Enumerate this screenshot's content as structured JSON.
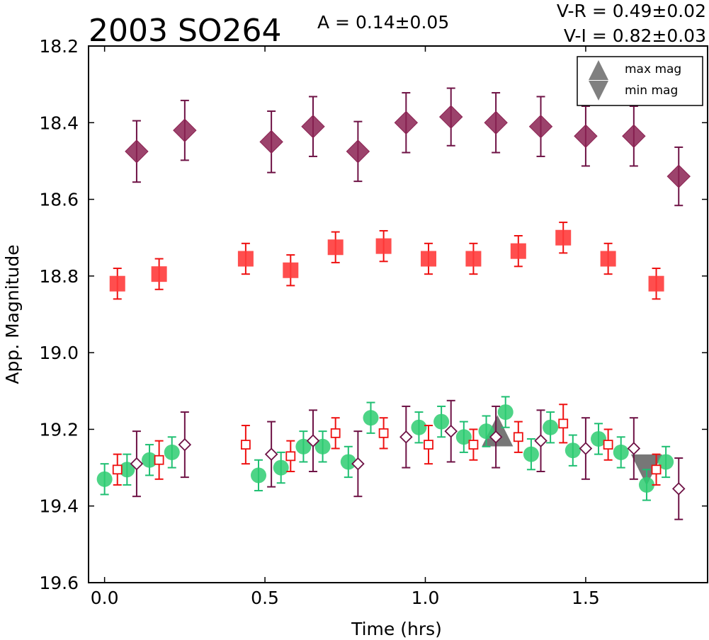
{
  "chart_data": {
    "type": "scatter",
    "title": "2003 SO264",
    "amplitude_text": "A  = 0.14±0.05",
    "color_index_lines": [
      "V-R = 0.49±0.02",
      "V-I  = 0.82±0.03"
    ],
    "xlabel": "Time (hrs)",
    "ylabel": "App. Magnitude",
    "xlim": [
      -0.05,
      1.88
    ],
    "ylim": [
      19.6,
      18.2
    ],
    "y_inverted": true,
    "grid": false,
    "xticks": [
      0.0,
      0.5,
      1.0,
      1.5
    ],
    "xtick_labels": [
      "0.0",
      "0.5",
      "1.0",
      "1.5"
    ],
    "yticks": [
      18.2,
      18.4,
      18.6,
      18.8,
      19.0,
      19.2,
      19.4,
      19.6
    ],
    "ytick_labels": [
      "18.2",
      "18.4",
      "18.6",
      "18.8",
      "19.0",
      "19.2",
      "19.4",
      "19.6"
    ],
    "legend": {
      "placement": "top-right",
      "entries": [
        {
          "label": "max mag",
          "marker": "triangle-up",
          "color": "#555555"
        },
        {
          "label": "min mag",
          "marker": "triangle-down",
          "color": "#555555"
        }
      ]
    },
    "series": [
      {
        "marker": "diamond-filled",
        "color": "#8b2252",
        "errcolor": "#6e1245",
        "points": [
          {
            "x": 0.1,
            "y": 18.475,
            "err": 0.08
          },
          {
            "x": 0.25,
            "y": 18.42,
            "err": 0.078
          },
          {
            "x": 0.52,
            "y": 18.45,
            "err": 0.08
          },
          {
            "x": 0.65,
            "y": 18.41,
            "err": 0.078
          },
          {
            "x": 0.79,
            "y": 18.475,
            "err": 0.078
          },
          {
            "x": 0.94,
            "y": 18.4,
            "err": 0.078
          },
          {
            "x": 1.08,
            "y": 18.385,
            "err": 0.075
          },
          {
            "x": 1.22,
            "y": 18.4,
            "err": 0.078
          },
          {
            "x": 1.36,
            "y": 18.41,
            "err": 0.078
          },
          {
            "x": 1.5,
            "y": 18.435,
            "err": 0.078
          },
          {
            "x": 1.65,
            "y": 18.435,
            "err": 0.078
          },
          {
            "x": 1.79,
            "y": 18.54,
            "err": 0.076
          }
        ]
      },
      {
        "marker": "square-filled",
        "color": "#ff3b3b",
        "errcolor": "#ee1111",
        "points": [
          {
            "x": 0.04,
            "y": 18.82,
            "err": 0.04
          },
          {
            "x": 0.17,
            "y": 18.795,
            "err": 0.04
          },
          {
            "x": 0.44,
            "y": 18.755,
            "err": 0.04
          },
          {
            "x": 0.58,
            "y": 18.785,
            "err": 0.04
          },
          {
            "x": 0.72,
            "y": 18.725,
            "err": 0.04
          },
          {
            "x": 0.87,
            "y": 18.722,
            "err": 0.04
          },
          {
            "x": 1.01,
            "y": 18.755,
            "err": 0.04
          },
          {
            "x": 1.15,
            "y": 18.755,
            "err": 0.04
          },
          {
            "x": 1.29,
            "y": 18.735,
            "err": 0.04
          },
          {
            "x": 1.43,
            "y": 18.7,
            "err": 0.04
          },
          {
            "x": 1.57,
            "y": 18.755,
            "err": 0.04
          },
          {
            "x": 1.72,
            "y": 18.82,
            "err": 0.04
          }
        ]
      },
      {
        "marker": "circle-filled",
        "color": "#2ecc71",
        "errcolor": "#1fbf72",
        "points": [
          {
            "x": 0.0,
            "y": 19.33,
            "err": 0.04
          },
          {
            "x": 0.07,
            "y": 19.305,
            "err": 0.04
          },
          {
            "x": 0.14,
            "y": 19.28,
            "err": 0.04
          },
          {
            "x": 0.21,
            "y": 19.26,
            "err": 0.04
          },
          {
            "x": 0.48,
            "y": 19.32,
            "err": 0.04
          },
          {
            "x": 0.55,
            "y": 19.3,
            "err": 0.04
          },
          {
            "x": 0.62,
            "y": 19.245,
            "err": 0.04
          },
          {
            "x": 0.68,
            "y": 19.245,
            "err": 0.04
          },
          {
            "x": 0.76,
            "y": 19.285,
            "err": 0.04
          },
          {
            "x": 0.83,
            "y": 19.17,
            "err": 0.04
          },
          {
            "x": 0.98,
            "y": 19.195,
            "err": 0.04
          },
          {
            "x": 1.05,
            "y": 19.18,
            "err": 0.04
          },
          {
            "x": 1.12,
            "y": 19.22,
            "err": 0.04
          },
          {
            "x": 1.19,
            "y": 19.205,
            "err": 0.04
          },
          {
            "x": 1.25,
            "y": 19.155,
            "err": 0.04
          },
          {
            "x": 1.33,
            "y": 19.265,
            "err": 0.04
          },
          {
            "x": 1.39,
            "y": 19.195,
            "err": 0.04
          },
          {
            "x": 1.46,
            "y": 19.255,
            "err": 0.04
          },
          {
            "x": 1.54,
            "y": 19.225,
            "err": 0.04
          },
          {
            "x": 1.61,
            "y": 19.26,
            "err": 0.04
          },
          {
            "x": 1.69,
            "y": 19.345,
            "err": 0.04
          },
          {
            "x": 1.75,
            "y": 19.285,
            "err": 0.04
          }
        ]
      },
      {
        "marker": "square-open",
        "color": "#ee1111",
        "errcolor": "#ee1111",
        "points": [
          {
            "x": 0.04,
            "y": 19.305,
            "err": 0.04
          },
          {
            "x": 0.17,
            "y": 19.28,
            "err": 0.05
          },
          {
            "x": 0.44,
            "y": 19.24,
            "err": 0.05
          },
          {
            "x": 0.58,
            "y": 19.27,
            "err": 0.04
          },
          {
            "x": 0.72,
            "y": 19.21,
            "err": 0.04
          },
          {
            "x": 0.87,
            "y": 19.21,
            "err": 0.04
          },
          {
            "x": 1.01,
            "y": 19.24,
            "err": 0.05
          },
          {
            "x": 1.15,
            "y": 19.24,
            "err": 0.04
          },
          {
            "x": 1.29,
            "y": 19.22,
            "err": 0.04
          },
          {
            "x": 1.43,
            "y": 19.185,
            "err": 0.05
          },
          {
            "x": 1.57,
            "y": 19.24,
            "err": 0.04
          },
          {
            "x": 1.72,
            "y": 19.305,
            "err": 0.04
          }
        ]
      },
      {
        "marker": "diamond-open",
        "color": "#6e1245",
        "errcolor": "#6e1245",
        "points": [
          {
            "x": 0.1,
            "y": 19.29,
            "err": 0.085
          },
          {
            "x": 0.25,
            "y": 19.24,
            "err": 0.085
          },
          {
            "x": 0.52,
            "y": 19.265,
            "err": 0.085
          },
          {
            "x": 0.65,
            "y": 19.23,
            "err": 0.08
          },
          {
            "x": 0.79,
            "y": 19.29,
            "err": 0.085
          },
          {
            "x": 0.94,
            "y": 19.22,
            "err": 0.08
          },
          {
            "x": 1.08,
            "y": 19.205,
            "err": 0.08
          },
          {
            "x": 1.22,
            "y": 19.22,
            "err": 0.08
          },
          {
            "x": 1.36,
            "y": 19.23,
            "err": 0.08
          },
          {
            "x": 1.5,
            "y": 19.25,
            "err": 0.08
          },
          {
            "x": 1.65,
            "y": 19.25,
            "err": 0.08
          },
          {
            "x": 1.79,
            "y": 19.355,
            "err": 0.08
          }
        ]
      }
    ],
    "extrema_markers": [
      {
        "type": "max",
        "x": 1.225,
        "y": 19.21,
        "color": "#555555"
      },
      {
        "type": "min",
        "x": 1.69,
        "y": 19.3,
        "color": "#555555"
      }
    ]
  }
}
